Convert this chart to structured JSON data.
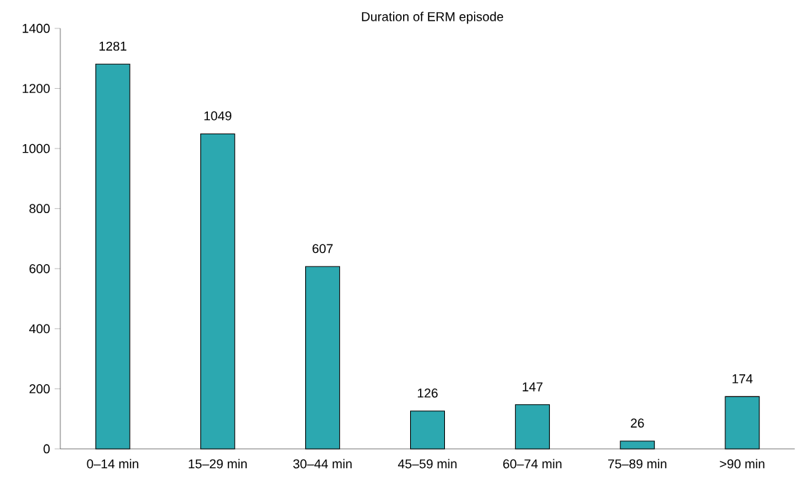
{
  "chart_data": {
    "type": "bar",
    "title": "Duration of ERM episode",
    "categories": [
      "0–14 min",
      "15–29 min",
      "30–44 min",
      "45–59 min",
      "60–74 min",
      "75–89 min",
      ">90 min"
    ],
    "values": [
      1281,
      1049,
      607,
      126,
      147,
      26,
      174
    ],
    "color": "#2ca8b0",
    "ylim": [
      0,
      1400
    ],
    "yticks": [
      0,
      200,
      400,
      600,
      800,
      1000,
      1200,
      1400
    ],
    "data_labels": true
  }
}
